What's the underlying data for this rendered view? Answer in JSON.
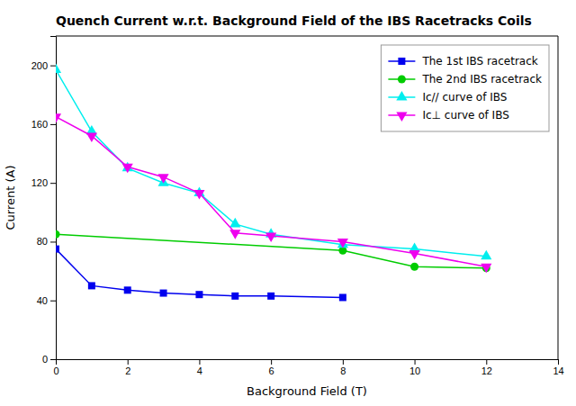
{
  "chart_data": {
    "type": "line",
    "title": "Quench Current w.r.t. Background Field of the IBS Racetracks Coils",
    "xlabel": "Background Field (T)",
    "ylabel": "Current (A)",
    "xlim": [
      0,
      14
    ],
    "ylim": [
      0,
      220
    ],
    "xticks": [
      0,
      2,
      4,
      6,
      8,
      10,
      12,
      14
    ],
    "yticks": [
      0,
      40,
      80,
      120,
      160,
      200
    ],
    "grid": false,
    "legend": "upper right",
    "series": [
      {
        "name": "The 1st IBS racetrack",
        "color": "#0000EE",
        "marker": "square",
        "line_style": "solid",
        "x": [
          0,
          1,
          2,
          3,
          4,
          5,
          6,
          8
        ],
        "values": [
          75,
          50,
          47,
          45,
          44,
          43,
          43,
          42
        ]
      },
      {
        "name": "The 2nd IBS racetrack",
        "color": "#00CC00",
        "marker": "circle",
        "line_style": "solid",
        "x": [
          0,
          8,
          10,
          12
        ],
        "values": [
          85,
          74,
          63,
          62
        ]
      },
      {
        "name": "Ic// curve of IBS",
        "color": "#00EEEE",
        "marker": "triangle-up",
        "line_style": "solid",
        "x": [
          0,
          1,
          2,
          3,
          4,
          5,
          6,
          8,
          10,
          12
        ],
        "values": [
          197,
          155,
          130,
          120,
          113,
          92,
          85,
          78,
          75,
          70
        ]
      },
      {
        "name": "Ic⊥ curve of IBS",
        "color": "#EE00EE",
        "marker": "triangle-down",
        "line_style": "solid",
        "x": [
          0,
          1,
          2,
          3,
          4,
          5,
          6,
          8,
          10,
          12
        ],
        "values": [
          165,
          152,
          131,
          124,
          113,
          86,
          84,
          80,
          72,
          63
        ]
      }
    ]
  }
}
